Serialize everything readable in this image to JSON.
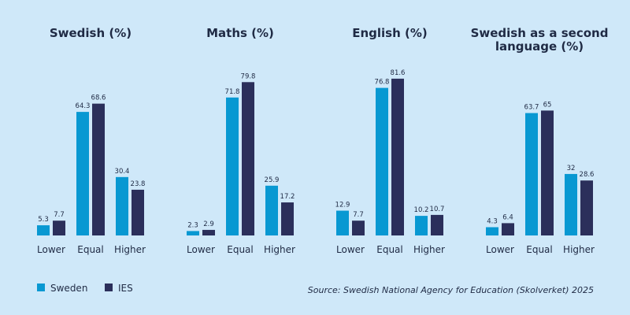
{
  "chart_data": [
    {
      "type": "bar",
      "title": "Swedish (%)",
      "categories": [
        "Lower",
        "Equal",
        "Higher"
      ],
      "series": [
        {
          "name": "Sweden",
          "values": [
            5.3,
            64.3,
            30.4
          ]
        },
        {
          "name": "IES",
          "values": [
            7.7,
            68.6,
            23.8
          ]
        }
      ]
    },
    {
      "type": "bar",
      "title": "Maths (%)",
      "categories": [
        "Lower",
        "Equal",
        "Higher"
      ],
      "series": [
        {
          "name": "Sweden",
          "values": [
            2.3,
            71.8,
            25.9
          ]
        },
        {
          "name": "IES",
          "values": [
            2.9,
            79.8,
            17.2
          ]
        }
      ]
    },
    {
      "type": "bar",
      "title": "English (%)",
      "categories": [
        "Lower",
        "Equal",
        "Higher"
      ],
      "series": [
        {
          "name": "Sweden",
          "values": [
            12.9,
            76.8,
            10.2
          ]
        },
        {
          "name": "IES",
          "values": [
            7.7,
            81.6,
            10.7
          ]
        }
      ]
    },
    {
      "type": "bar",
      "title": "Swedish as a second language (%)",
      "title_lines": [
        "Swedish as a second",
        "language (%)"
      ],
      "categories": [
        "Lower",
        "Equal",
        "Higher"
      ],
      "series": [
        {
          "name": "Sweden",
          "values": [
            4.3,
            63.7,
            32
          ]
        },
        {
          "name": "IES",
          "values": [
            6.4,
            65,
            28.6
          ]
        }
      ]
    }
  ],
  "legend": [
    {
      "name": "Sweden",
      "color": "#0898d2"
    },
    {
      "name": "IES",
      "color": "#2b2f5b"
    }
  ],
  "legend_placement": "bottom-left",
  "source": "Source: Swedish National Agency for Education (Skolverket) 2025"
}
